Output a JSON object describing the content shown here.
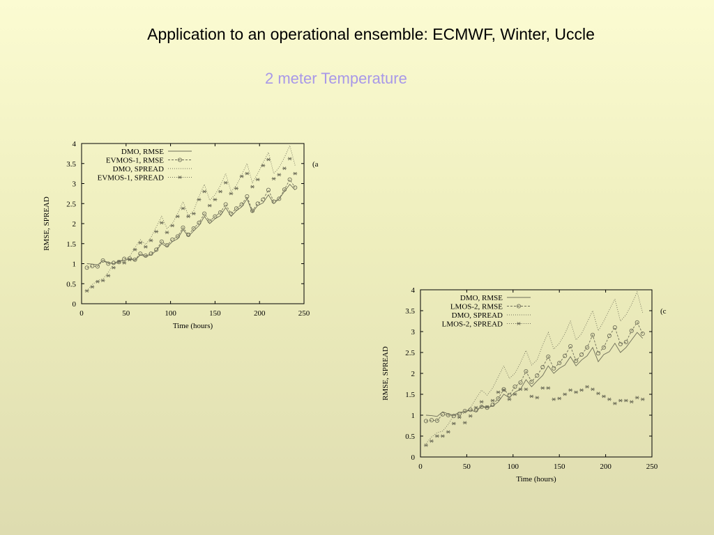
{
  "slide": {
    "title": "Application to an operational ensemble: ECMWF, Winter, Uccle",
    "subtitle": "2 meter Temperature"
  },
  "colors": {
    "subtitle": "#a898e8",
    "series": "#6d6d58",
    "background_top": "#fbfbd2",
    "background_bottom": "#dedcb0"
  },
  "chart_data": [
    {
      "type": "line",
      "panel_label": "(a",
      "xlabel": "Time (hours)",
      "ylabel": "RMSE, SPREAD",
      "xlim": [
        0,
        250
      ],
      "ylim": [
        0,
        4
      ],
      "xticks": [
        0,
        50,
        100,
        150,
        200,
        250
      ],
      "yticks": [
        0,
        0.5,
        1,
        1.5,
        2,
        2.5,
        3,
        3.5,
        4
      ],
      "xtick_labels": [
        "0",
        "50",
        "100",
        "150",
        "200",
        "250"
      ],
      "ytick_labels": [
        "0",
        "0.5",
        "1",
        "1.5",
        "2",
        "2.5",
        "3",
        "3.5",
        "4"
      ],
      "legend_position": "top-left",
      "grid": false,
      "series": [
        {
          "name": "DMO, RMSE",
          "style": "solid",
          "marker": "none",
          "x": [
            6,
            12,
            18,
            24,
            30,
            36,
            42,
            48,
            54,
            60,
            66,
            72,
            78,
            84,
            90,
            96,
            102,
            108,
            114,
            120,
            126,
            132,
            138,
            144,
            150,
            156,
            162,
            168,
            174,
            180,
            186,
            192,
            198,
            204,
            210,
            216,
            222,
            228,
            234,
            240
          ],
          "y": [
            1.0,
            0.99,
            0.97,
            1.08,
            1.03,
            1.0,
            1.07,
            1.08,
            1.12,
            1.08,
            1.22,
            1.18,
            1.22,
            1.32,
            1.5,
            1.42,
            1.55,
            1.62,
            1.85,
            1.68,
            1.82,
            1.95,
            2.18,
            2.0,
            2.12,
            2.2,
            2.4,
            2.18,
            2.32,
            2.42,
            2.62,
            2.28,
            2.45,
            2.52,
            2.72,
            2.5,
            2.62,
            2.8,
            2.98,
            2.84
          ]
        },
        {
          "name": "EVMOS-1, RMSE",
          "style": "dashed",
          "marker": "circle",
          "x": [
            6,
            12,
            18,
            24,
            30,
            36,
            42,
            48,
            54,
            60,
            66,
            72,
            78,
            84,
            90,
            96,
            102,
            108,
            114,
            120,
            126,
            132,
            138,
            144,
            150,
            156,
            162,
            168,
            174,
            180,
            186,
            192,
            198,
            204,
            210,
            216,
            222,
            228,
            234,
            240
          ],
          "y": [
            0.9,
            0.94,
            0.93,
            1.08,
            1.0,
            1.02,
            1.04,
            1.12,
            1.13,
            1.1,
            1.25,
            1.2,
            1.25,
            1.35,
            1.55,
            1.46,
            1.6,
            1.68,
            1.9,
            1.72,
            1.88,
            2.02,
            2.25,
            2.06,
            2.18,
            2.28,
            2.48,
            2.25,
            2.38,
            2.48,
            2.68,
            2.32,
            2.5,
            2.6,
            2.84,
            2.55,
            2.62,
            2.85,
            3.1,
            2.9
          ]
        },
        {
          "name": "DMO, SPREAD",
          "style": "dotted",
          "marker": "none",
          "x": [
            6,
            12,
            18,
            24,
            30,
            36,
            42,
            48,
            54,
            60,
            66,
            72,
            78,
            84,
            90,
            96,
            102,
            108,
            114,
            120,
            126,
            132,
            138,
            144,
            150,
            156,
            162,
            168,
            174,
            180,
            186,
            192,
            198,
            204,
            210,
            216,
            222,
            228,
            234,
            240
          ],
          "y": [
            0.32,
            0.48,
            0.58,
            0.62,
            0.78,
            1.0,
            1.02,
            1.05,
            1.18,
            1.4,
            1.6,
            1.48,
            1.65,
            1.92,
            2.18,
            1.88,
            2.0,
            2.25,
            2.55,
            2.2,
            2.32,
            2.68,
            2.98,
            2.58,
            2.72,
            2.95,
            3.25,
            2.8,
            2.95,
            3.22,
            3.5,
            3.02,
            3.25,
            3.52,
            3.78,
            3.25,
            3.4,
            3.65,
            3.95,
            3.45
          ]
        },
        {
          "name": "EVMOS-1, SPREAD",
          "style": "dotted",
          "marker": "star",
          "x": [
            6,
            12,
            18,
            24,
            30,
            36,
            42,
            48,
            54,
            60,
            66,
            72,
            78,
            84,
            90,
            96,
            102,
            108,
            114,
            120,
            126,
            132,
            138,
            144,
            150,
            156,
            162,
            168,
            174,
            180,
            186,
            192,
            198,
            204,
            210,
            216,
            222,
            228,
            234,
            240
          ],
          "y": [
            0.32,
            0.42,
            0.55,
            0.58,
            0.7,
            0.9,
            1.05,
            1.02,
            1.1,
            1.35,
            1.52,
            1.42,
            1.58,
            1.8,
            2.02,
            1.78,
            1.95,
            2.18,
            2.38,
            2.18,
            2.25,
            2.6,
            2.8,
            2.45,
            2.6,
            2.8,
            3.02,
            2.75,
            2.88,
            3.18,
            3.25,
            2.92,
            3.1,
            3.45,
            3.6,
            3.12,
            3.22,
            3.38,
            3.62,
            3.25
          ]
        }
      ]
    },
    {
      "type": "line",
      "panel_label": "(c",
      "xlabel": "Time (hours)",
      "ylabel": "RMSE, SPREAD",
      "xlim": [
        0,
        250
      ],
      "ylim": [
        0,
        4
      ],
      "xticks": [
        0,
        50,
        100,
        150,
        200,
        250
      ],
      "yticks": [
        0,
        0.5,
        1,
        1.5,
        2,
        2.5,
        3,
        3.5,
        4
      ],
      "xtick_labels": [
        "0",
        "50",
        "100",
        "150",
        "200",
        "250"
      ],
      "ytick_labels": [
        "0",
        "0.5",
        "1",
        "1.5",
        "2",
        "2.5",
        "3",
        "3.5",
        "4"
      ],
      "legend_position": "top-left",
      "grid": false,
      "series": [
        {
          "name": "DMO, RMSE",
          "style": "solid",
          "marker": "none",
          "x": [
            6,
            12,
            18,
            24,
            30,
            36,
            42,
            48,
            54,
            60,
            66,
            72,
            78,
            84,
            90,
            96,
            102,
            108,
            114,
            120,
            126,
            132,
            138,
            144,
            150,
            156,
            162,
            168,
            174,
            180,
            186,
            192,
            198,
            204,
            210,
            216,
            222,
            228,
            234,
            240
          ],
          "y": [
            1.0,
            0.99,
            0.97,
            1.08,
            1.03,
            1.0,
            1.07,
            1.08,
            1.12,
            1.08,
            1.22,
            1.18,
            1.22,
            1.32,
            1.5,
            1.42,
            1.55,
            1.62,
            1.85,
            1.68,
            1.82,
            1.95,
            2.18,
            2.0,
            2.12,
            2.2,
            2.4,
            2.18,
            2.32,
            2.42,
            2.62,
            2.28,
            2.45,
            2.52,
            2.72,
            2.5,
            2.62,
            2.8,
            2.98,
            2.84
          ]
        },
        {
          "name": "LMOS-2, RMSE",
          "style": "dashed",
          "marker": "circle",
          "x": [
            6,
            12,
            18,
            24,
            30,
            36,
            42,
            48,
            54,
            60,
            66,
            72,
            78,
            84,
            90,
            96,
            102,
            108,
            114,
            120,
            126,
            132,
            138,
            144,
            150,
            156,
            162,
            168,
            174,
            180,
            186,
            192,
            198,
            204,
            210,
            216,
            222,
            228,
            234,
            240
          ],
          "y": [
            0.86,
            0.88,
            0.87,
            1.02,
            1.0,
            0.98,
            1.03,
            1.1,
            1.13,
            1.12,
            1.2,
            1.18,
            1.25,
            1.4,
            1.62,
            1.48,
            1.68,
            1.78,
            2.05,
            1.8,
            1.95,
            2.15,
            2.4,
            2.12,
            2.25,
            2.42,
            2.65,
            2.3,
            2.45,
            2.62,
            2.92,
            2.48,
            2.62,
            2.9,
            3.1,
            2.7,
            2.75,
            3.02,
            3.22,
            2.95
          ]
        },
        {
          "name": "DMO, SPREAD",
          "style": "dotted",
          "marker": "none",
          "x": [
            6,
            12,
            18,
            24,
            30,
            36,
            42,
            48,
            54,
            60,
            66,
            72,
            78,
            84,
            90,
            96,
            102,
            108,
            114,
            120,
            126,
            132,
            138,
            144,
            150,
            156,
            162,
            168,
            174,
            180,
            186,
            192,
            198,
            204,
            210,
            216,
            222,
            228,
            234,
            240
          ],
          "y": [
            0.32,
            0.48,
            0.58,
            0.62,
            0.78,
            1.0,
            1.02,
            1.05,
            1.18,
            1.4,
            1.6,
            1.48,
            1.65,
            1.92,
            2.18,
            1.88,
            2.0,
            2.25,
            2.55,
            2.2,
            2.32,
            2.68,
            2.98,
            2.58,
            2.72,
            2.95,
            3.25,
            2.8,
            2.95,
            3.22,
            3.5,
            3.02,
            3.25,
            3.52,
            3.78,
            3.25,
            3.4,
            3.65,
            3.95,
            3.45
          ]
        },
        {
          "name": "LMOS-2, SPREAD",
          "style": "dotted",
          "marker": "star",
          "x": [
            6,
            12,
            18,
            24,
            30,
            36,
            42,
            48,
            54,
            60,
            66,
            72,
            78,
            84,
            90,
            96,
            102,
            108,
            114,
            120,
            126,
            132,
            138,
            144,
            150,
            156,
            162,
            168,
            174,
            180,
            186,
            192,
            198,
            204,
            210,
            216,
            222,
            228,
            234,
            240
          ],
          "y": [
            0.28,
            0.38,
            0.5,
            0.5,
            0.6,
            0.8,
            0.95,
            0.82,
            0.98,
            1.18,
            1.32,
            1.2,
            1.35,
            1.55,
            1.6,
            1.38,
            1.5,
            1.62,
            1.62,
            1.45,
            1.42,
            1.65,
            1.65,
            1.38,
            1.4,
            1.5,
            1.6,
            1.55,
            1.6,
            1.68,
            1.62,
            1.52,
            1.45,
            1.38,
            1.28,
            1.35,
            1.35,
            1.32,
            1.42,
            1.38
          ]
        }
      ]
    }
  ]
}
